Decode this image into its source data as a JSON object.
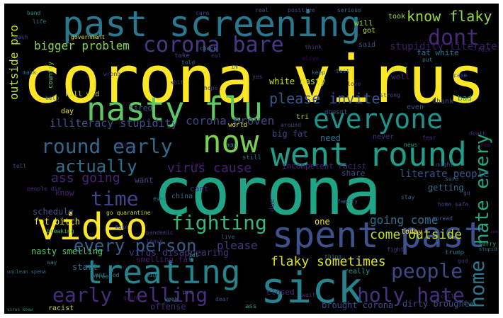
{
  "words": [
    {
      "text": "corona virus",
      "color": "#fde725"
    },
    {
      "text": "corona",
      "color": "#20a486"
    },
    {
      "text": "past screening",
      "color": "#2a788e"
    },
    {
      "text": "sick",
      "color": "#26828e"
    },
    {
      "text": "treating",
      "color": "#25858e"
    },
    {
      "text": "virus knew",
      "color": "#1f988b"
    },
    {
      "text": "nasty flu",
      "color": "#5ec962"
    },
    {
      "text": "spent past",
      "color": "#3b528b"
    },
    {
      "text": "everyone",
      "color": "#21918c"
    },
    {
      "text": "went round",
      "color": "#1f9e89"
    },
    {
      "text": "video",
      "color": "#fde725"
    },
    {
      "text": "now",
      "color": "#7ad151"
    },
    {
      "text": "round early",
      "color": "#31688e"
    },
    {
      "text": "corona bare",
      "color": "#443983"
    },
    {
      "text": "dont",
      "color": "#482878"
    },
    {
      "text": "hate every",
      "color": "#22a884"
    },
    {
      "text": "early telling",
      "color": "#472d7b"
    },
    {
      "text": "holy hate",
      "color": "#46327e"
    },
    {
      "text": "fighting",
      "color": "#35b779"
    },
    {
      "text": "actually",
      "color": "#2c728e"
    },
    {
      "text": "time",
      "color": "#414487"
    },
    {
      "text": "people",
      "color": "#3e4989"
    },
    {
      "text": "home",
      "color": "#2a788e"
    },
    {
      "text": "every person",
      "color": "#355f8d"
    },
    {
      "text": "know flaky",
      "color": "#95d840"
    },
    {
      "text": "please invite",
      "color": "#38588c"
    },
    {
      "text": "flaky sometimes",
      "color": "#dde318"
    },
    {
      "text": "virus cause",
      "color": "#482173"
    },
    {
      "text": "come outside",
      "color": "#c2df23"
    },
    {
      "text": "going come",
      "color": "#2d708e"
    },
    {
      "text": "corona proven",
      "color": "#404688"
    },
    {
      "text": "illiteracy stupidity",
      "color": "#3b528b"
    },
    {
      "text": "ass going",
      "color": "#482475"
    },
    {
      "text": "bigger problem",
      "color": "#86d549"
    },
    {
      "text": "stupidity literate",
      "color": "#3f1f6b"
    },
    {
      "text": "outside pro",
      "color": "#c0df25"
    },
    {
      "text": "please",
      "color": "#453781"
    },
    {
      "text": "literate people",
      "color": "#3a548c"
    },
    {
      "text": "nasty smelling",
      "color": "#5ac864"
    },
    {
      "text": "virus disappearing",
      "color": "#46337f"
    },
    {
      "text": "fat bitch",
      "color": "#f1e51d"
    },
    {
      "text": "white nasty",
      "color": "#cde11d"
    },
    {
      "text": "schedule",
      "color": "#3b528b"
    },
    {
      "text": "smelling fat",
      "color": "#481a6c"
    },
    {
      "text": "big fat",
      "color": "#3e4a89"
    },
    {
      "text": "incompetent racist",
      "color": "#482878"
    },
    {
      "text": "fat white",
      "color": "#2a778e"
    },
    {
      "text": "dirty brought",
      "color": "#3d4e8a"
    },
    {
      "text": "brought corona",
      "color": "#3e4c8a"
    },
    {
      "text": "offense",
      "color": "#472a7a"
    },
    {
      "text": "closed",
      "color": "#472c7a"
    },
    {
      "text": "racist",
      "color": "#b8de29"
    },
    {
      "text": "getting",
      "color": "#2d708e"
    },
    {
      "text": "share",
      "color": "#3c4f8a"
    },
    {
      "text": "need",
      "color": "#2c738e"
    },
    {
      "text": "want",
      "color": "#3e4a89"
    },
    {
      "text": "know",
      "color": "#482173"
    },
    {
      "text": "tired",
      "color": "#31688e"
    },
    {
      "text": "cant",
      "color": "#482677"
    },
    {
      "text": "china",
      "color": "#2c718e"
    },
    {
      "text": "one",
      "color": "#fde725"
    },
    {
      "text": "today",
      "color": "#fde725"
    },
    {
      "text": "really",
      "color": "#1fa187"
    },
    {
      "text": "start",
      "color": "#2e6f8e"
    },
    {
      "text": "kill wid",
      "color": "#c8e020"
    },
    {
      "text": "day",
      "color": "#e5e419"
    },
    {
      "text": "will",
      "color": "#9bd93c"
    },
    {
      "text": "got",
      "color": "#b5de2b"
    },
    {
      "text": "took",
      "color": "#a5db36"
    },
    {
      "text": "said",
      "color": "#3b528b"
    },
    {
      "text": "new",
      "color": "#d5e21a"
    },
    {
      "text": "well",
      "color": "#482878"
    },
    {
      "text": "bad",
      "color": "#20928c"
    },
    {
      "text": "thank",
      "color": "#3e4a89"
    },
    {
      "text": "even",
      "color": "#3b528b"
    },
    {
      "text": "never",
      "color": "#46307e"
    },
    {
      "text": "due",
      "color": "#481b6d"
    },
    {
      "text": "tri",
      "color": "#8fd744"
    },
    {
      "text": "doesnt",
      "color": "#3a538b"
    },
    {
      "text": "still",
      "color": "#2a768e"
    },
    {
      "text": "world",
      "color": "#d8e219"
    },
    {
      "text": "sorry",
      "color": "#28ae80"
    },
    {
      "text": "trump",
      "color": "#2a788e"
    },
    {
      "text": "stupid",
      "color": "#2c738e"
    },
    {
      "text": "government",
      "color": "#dde318"
    },
    {
      "text": "serious",
      "color": "#306a8e"
    },
    {
      "text": "real",
      "color": "#3b528b"
    },
    {
      "text": "positive",
      "color": "#3c508b"
    },
    {
      "text": "country",
      "color": "#6ece58"
    },
    {
      "text": "help",
      "color": "#2c718e"
    },
    {
      "text": "pandemic",
      "color": "#433e85"
    },
    {
      "text": "say",
      "color": "#287c8e"
    },
    {
      "text": "ass",
      "color": "#20a386"
    },
    {
      "text": "breaking",
      "color": "#35b779"
    },
    {
      "text": "rea",
      "color": "#471164"
    },
    {
      "text": "told",
      "color": "#2d718e"
    },
    {
      "text": "go",
      "color": "#3b528b"
    },
    {
      "text": "see",
      "color": "#482071"
    },
    {
      "text": "man",
      "color": "#297b8e"
    },
    {
      "text": "live",
      "color": "#34608d"
    },
    {
      "text": "around",
      "color": "#3d4e8a"
    },
    {
      "text": "leave",
      "color": "#46327e"
    },
    {
      "text": "last",
      "color": "#48186a"
    },
    {
      "text": "take",
      "color": "#414487"
    },
    {
      "text": "keep",
      "color": "#2e6e8e"
    },
    {
      "text": "wash",
      "color": "#3f4889"
    },
    {
      "text": "hand",
      "color": "#1f958b"
    },
    {
      "text": "life",
      "color": "#2b758e"
    },
    {
      "text": "care",
      "color": "#414487"
    },
    {
      "text": "think",
      "color": "#423f85"
    },
    {
      "text": "test",
      "color": "#24868e"
    },
    {
      "text": "case",
      "color": "#3a548c"
    },
    {
      "text": "death",
      "color": "#482575"
    },
    {
      "text": "fear",
      "color": "#472f7d"
    },
    {
      "text": "news",
      "color": "#1e9c89"
    },
    {
      "text": "stay",
      "color": "#2e6d8e"
    },
    {
      "text": "home safe",
      "color": "#404387"
    },
    {
      "text": "spread",
      "color": "#39568c"
    },
    {
      "text": "people die",
      "color": "#482979"
    },
    {
      "text": "mask",
      "color": "#31688e"
    },
    {
      "text": "lol",
      "color": "#25ab82"
    },
    {
      "text": "go quarantine",
      "color": "#c0df25"
    },
    {
      "text": "unclean spena",
      "color": "#2c718e"
    },
    {
      "text": "want god",
      "color": "#2a778e"
    },
    {
      "text": "might",
      "color": "#3e4a89"
    },
    {
      "text": "hope",
      "color": "#453781"
    },
    {
      "text": "family",
      "color": "#3b528b"
    },
    {
      "text": "sure",
      "color": "#2c738e"
    },
    {
      "text": "love",
      "color": "#482878"
    },
    {
      "text": "wrong",
      "color": "#46307e"
    },
    {
      "text": "shit",
      "color": "#433e85"
    },
    {
      "text": "ever",
      "color": "#2a788e"
    },
    {
      "text": "dear",
      "color": "#3b528b"
    },
    {
      "text": "week",
      "color": "#287d8e"
    },
    {
      "text": "going",
      "color": "#481668"
    },
    {
      "text": "make",
      "color": "#3f4788"
    },
    {
      "text": "thing",
      "color": "#2f6b8e"
    },
    {
      "text": "fight",
      "color": "#433d84"
    },
    {
      "text": "strong",
      "color": "#3c4f8a"
    },
    {
      "text": "eat",
      "color": "#482878"
    },
    {
      "text": "im",
      "color": "#31688e"
    },
    {
      "text": "yes",
      "color": "#423f85"
    },
    {
      "text": "alive",
      "color": "#440154"
    },
    {
      "text": "put",
      "color": "#2a788e"
    },
    {
      "text": "fuck",
      "color": "#482173"
    },
    {
      "text": "tell",
      "color": "#3e4989"
    },
    {
      "text": "free",
      "color": "#25858e"
    },
    {
      "text": "bro",
      "color": "#481769"
    },
    {
      "text": "check",
      "color": "#2c728e"
    },
    {
      "text": "call",
      "color": "#46317e"
    },
    {
      "text": "use",
      "color": "#2b748e"
    },
    {
      "text": "big",
      "color": "#31688e"
    },
    {
      "text": "wait",
      "color": "#472e7c"
    },
    {
      "text": "pro",
      "color": "#3b528b"
    },
    {
      "text": "god",
      "color": "#46337f"
    }
  ]
}
